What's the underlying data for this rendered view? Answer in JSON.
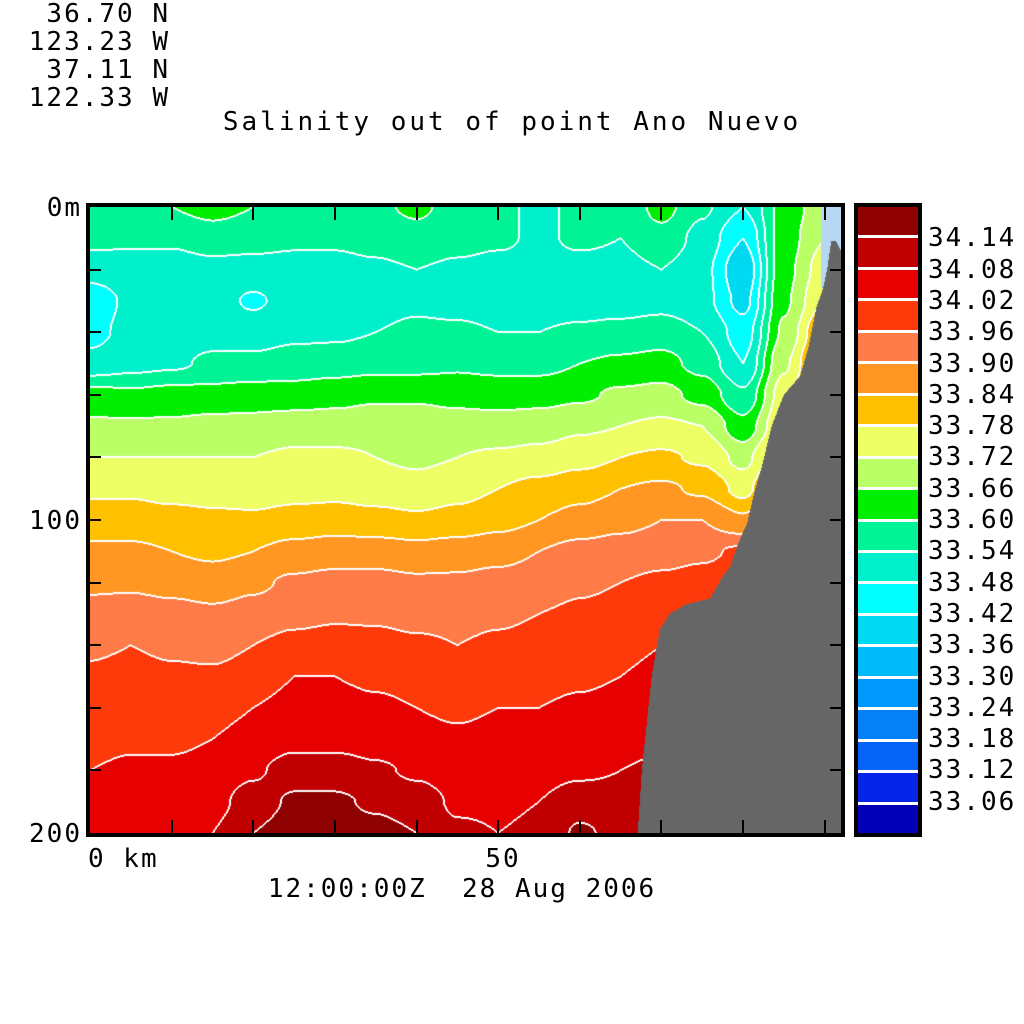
{
  "chart_data": {
    "type": "filled_contour",
    "title": "Salinity out of point Ano Nuevo",
    "timestamp": "12:00:00Z  28 Aug 2006",
    "transect": {
      "start_lat": "36.70 N",
      "start_lon": "123.23 W",
      "end_lat": "37.11 N",
      "end_lon": "122.33 W"
    },
    "axis_labels": {
      "x_origin": "0 km",
      "x_mid": "50",
      "y_top": "0m",
      "y_mid": "100",
      "y_bottom": "200"
    },
    "x_range_km": [
      0,
      92
    ],
    "x_tick_step_km": 10,
    "y_range_m": [
      0,
      200
    ],
    "y_tick_step_m": 20,
    "levels_psu": [
      33.06,
      33.12,
      33.18,
      33.24,
      33.3,
      33.36,
      33.42,
      33.48,
      33.54,
      33.6,
      33.66,
      33.72,
      33.78,
      33.84,
      33.9,
      33.96,
      34.02,
      34.08,
      34.14
    ],
    "legend_labels_top_to_bottom": [
      "34.14",
      "34.08",
      "34.02",
      "33.96",
      "33.90",
      "33.84",
      "33.78",
      "33.72",
      "33.66",
      "33.60",
      "33.54",
      "33.48",
      "33.42",
      "33.36",
      "33.30",
      "33.24",
      "33.18",
      "33.12",
      "33.06"
    ],
    "band_colors_low_to_high": [
      "#0400B8",
      "#0525E8",
      "#0563F7",
      "#0580F5",
      "#0098FC",
      "#00BBFB",
      "#00D9F2",
      "#00FFFF",
      "#00F0CC",
      "#00F495",
      "#00EE00",
      "#BBFF66",
      "#EEFF66",
      "#FFC000",
      "#FF9722",
      "#FF7B47",
      "#FF3A0A",
      "#E60000",
      "#C00000",
      "#8F0000"
    ],
    "land_color": "#666666",
    "nodata_color": "#B7D8F3",
    "contour_line_color": "#FFFFFF",
    "bathymetry_km_m": [
      [
        0,
        600
      ],
      [
        62,
        600
      ],
      [
        65,
        280
      ],
      [
        66.5,
        215
      ],
      [
        67.1,
        200
      ],
      [
        67.6,
        180
      ],
      [
        68.2,
        165
      ],
      [
        68.8,
        150
      ],
      [
        69.8,
        135
      ],
      [
        71,
        130
      ],
      [
        73,
        127
      ],
      [
        76,
        125
      ],
      [
        77.5,
        118
      ],
      [
        78.4,
        115
      ],
      [
        79.5,
        107
      ],
      [
        80.5,
        101
      ],
      [
        81.5,
        90
      ],
      [
        82.4,
        82
      ],
      [
        83.5,
        70
      ],
      [
        85,
        60
      ],
      [
        87,
        54
      ],
      [
        88,
        45
      ],
      [
        89,
        32
      ],
      [
        89.8,
        26
      ],
      [
        90.3,
        20
      ],
      [
        90.8,
        11
      ],
      [
        91.4,
        11
      ],
      [
        92,
        14
      ]
    ],
    "grid": {
      "x_km": [
        0,
        5,
        10,
        15,
        20,
        25,
        30,
        35,
        40,
        45,
        50,
        55,
        60,
        65,
        70,
        75,
        80,
        85,
        90,
        92
      ],
      "depth_m": [
        0,
        10,
        20,
        30,
        40,
        50,
        60,
        70,
        80,
        90,
        100,
        110,
        120,
        130,
        140,
        150,
        160,
        170,
        180,
        190,
        200
      ],
      "salinity": [
        [
          33.56,
          33.56,
          33.6,
          33.62,
          33.6,
          33.58,
          33.57,
          33.59,
          33.61,
          33.58,
          33.56,
          33.52,
          33.56,
          33.55,
          33.62,
          33.55,
          33.48,
          33.62,
          33.7,
          33.72
        ],
        [
          33.56,
          33.55,
          33.55,
          33.57,
          33.56,
          33.55,
          33.55,
          33.56,
          33.58,
          33.56,
          33.55,
          33.53,
          33.55,
          33.54,
          33.58,
          33.52,
          33.42,
          33.63,
          33.72,
          33.74
        ],
        [
          33.5,
          33.51,
          33.51,
          33.52,
          33.52,
          33.52,
          33.52,
          33.53,
          33.54,
          33.53,
          33.52,
          33.52,
          33.52,
          33.52,
          33.54,
          33.5,
          33.37,
          33.64,
          33.75,
          33.78
        ],
        [
          33.45,
          33.49,
          33.5,
          33.51,
          33.47,
          33.51,
          33.51,
          33.52,
          33.53,
          33.52,
          33.51,
          33.51,
          33.51,
          33.51,
          33.52,
          33.5,
          33.4,
          33.65,
          33.78,
          33.8
        ],
        [
          33.46,
          33.5,
          33.51,
          33.52,
          33.52,
          33.53,
          33.53,
          33.54,
          33.55,
          33.55,
          33.54,
          33.54,
          33.55,
          33.56,
          33.57,
          33.54,
          33.45,
          33.67,
          33.85,
          33.86
        ],
        [
          33.5,
          33.52,
          33.53,
          33.55,
          33.55,
          33.56,
          33.57,
          33.58,
          33.58,
          33.59,
          33.58,
          33.58,
          33.6,
          33.61,
          33.62,
          33.58,
          33.48,
          33.71,
          33.9,
          33.92
        ],
        [
          33.62,
          33.61,
          33.62,
          33.62,
          33.63,
          33.63,
          33.64,
          33.65,
          33.65,
          33.64,
          33.64,
          33.64,
          33.65,
          33.67,
          33.68,
          33.64,
          33.55,
          33.75,
          33.95,
          33.96
        ],
        [
          33.67,
          33.67,
          33.67,
          33.68,
          33.68,
          33.69,
          33.69,
          33.7,
          33.7,
          33.69,
          33.68,
          33.69,
          33.71,
          33.72,
          33.73,
          33.72,
          33.62,
          33.78,
          34.0,
          34.0
        ],
        [
          33.72,
          33.72,
          33.72,
          33.72,
          33.72,
          33.73,
          33.73,
          33.72,
          33.71,
          33.72,
          33.73,
          33.74,
          33.76,
          33.78,
          33.79,
          33.77,
          33.7,
          33.85,
          34.0,
          34.0
        ],
        [
          33.77,
          33.77,
          33.76,
          33.76,
          33.75,
          33.76,
          33.76,
          33.75,
          33.74,
          33.76,
          33.78,
          33.8,
          33.82,
          33.84,
          33.85,
          33.83,
          33.76,
          33.9,
          34.05,
          34.05
        ],
        [
          33.81,
          33.81,
          33.8,
          33.79,
          33.79,
          33.8,
          33.81,
          33.8,
          33.79,
          33.8,
          33.82,
          33.84,
          33.86,
          33.88,
          33.9,
          33.9,
          33.85,
          33.95,
          34.05,
          34.05
        ],
        [
          33.85,
          33.85,
          33.84,
          33.83,
          33.84,
          33.86,
          33.87,
          33.87,
          33.86,
          33.87,
          33.88,
          33.9,
          33.92,
          33.93,
          33.94,
          33.95,
          33.97,
          34.0,
          34.05,
          34.05
        ],
        [
          33.89,
          33.89,
          33.88,
          33.87,
          33.89,
          33.91,
          33.92,
          33.92,
          33.91,
          33.91,
          33.92,
          33.93,
          33.95,
          33.96,
          33.97,
          33.98,
          34.0,
          34.02,
          34.05,
          34.05
        ],
        [
          33.92,
          33.93,
          33.92,
          33.91,
          33.92,
          33.94,
          33.95,
          33.95,
          33.94,
          33.94,
          33.95,
          33.96,
          33.97,
          33.98,
          34.0,
          34.0,
          34.02,
          34.03,
          34.05,
          34.05
        ],
        [
          33.95,
          33.96,
          33.95,
          33.94,
          33.96,
          33.98,
          33.99,
          33.98,
          33.97,
          33.96,
          33.97,
          33.98,
          33.99,
          34.0,
          34.02,
          34.03,
          34.03,
          34.04,
          34.05,
          34.05
        ],
        [
          33.97,
          33.98,
          33.97,
          33.97,
          33.99,
          34.02,
          34.02,
          34.01,
          34.0,
          33.99,
          34.0,
          34.0,
          34.01,
          34.02,
          34.04,
          34.05,
          34.05,
          34.05,
          34.06,
          34.06
        ],
        [
          33.99,
          34.0,
          33.99,
          34.0,
          34.02,
          34.04,
          34.04,
          34.03,
          34.02,
          34.01,
          34.02,
          34.02,
          34.03,
          34.04,
          34.05,
          34.06,
          34.06,
          34.06,
          34.07,
          34.07
        ],
        [
          34.0,
          34.01,
          34.01,
          34.02,
          34.04,
          34.06,
          34.06,
          34.05,
          34.04,
          34.03,
          34.04,
          34.04,
          34.05,
          34.06,
          34.07,
          34.07,
          34.07,
          34.07,
          34.08,
          34.08
        ],
        [
          34.02,
          34.03,
          34.03,
          34.04,
          34.07,
          34.11,
          34.11,
          34.09,
          34.07,
          34.05,
          34.06,
          34.06,
          34.07,
          34.08,
          34.09,
          34.09,
          34.09,
          34.09,
          34.09,
          34.09
        ],
        [
          34.04,
          34.05,
          34.05,
          34.06,
          34.11,
          34.15,
          34.15,
          34.13,
          34.11,
          34.07,
          34.07,
          34.08,
          34.11,
          34.1,
          34.1,
          34.1,
          34.1,
          34.1,
          34.1,
          34.1
        ],
        [
          34.05,
          34.06,
          34.06,
          34.08,
          34.14,
          34.17,
          34.17,
          34.16,
          34.14,
          34.09,
          34.08,
          34.09,
          34.15,
          34.12,
          34.11,
          34.11,
          34.11,
          34.11,
          34.11,
          34.11
        ]
      ]
    }
  }
}
